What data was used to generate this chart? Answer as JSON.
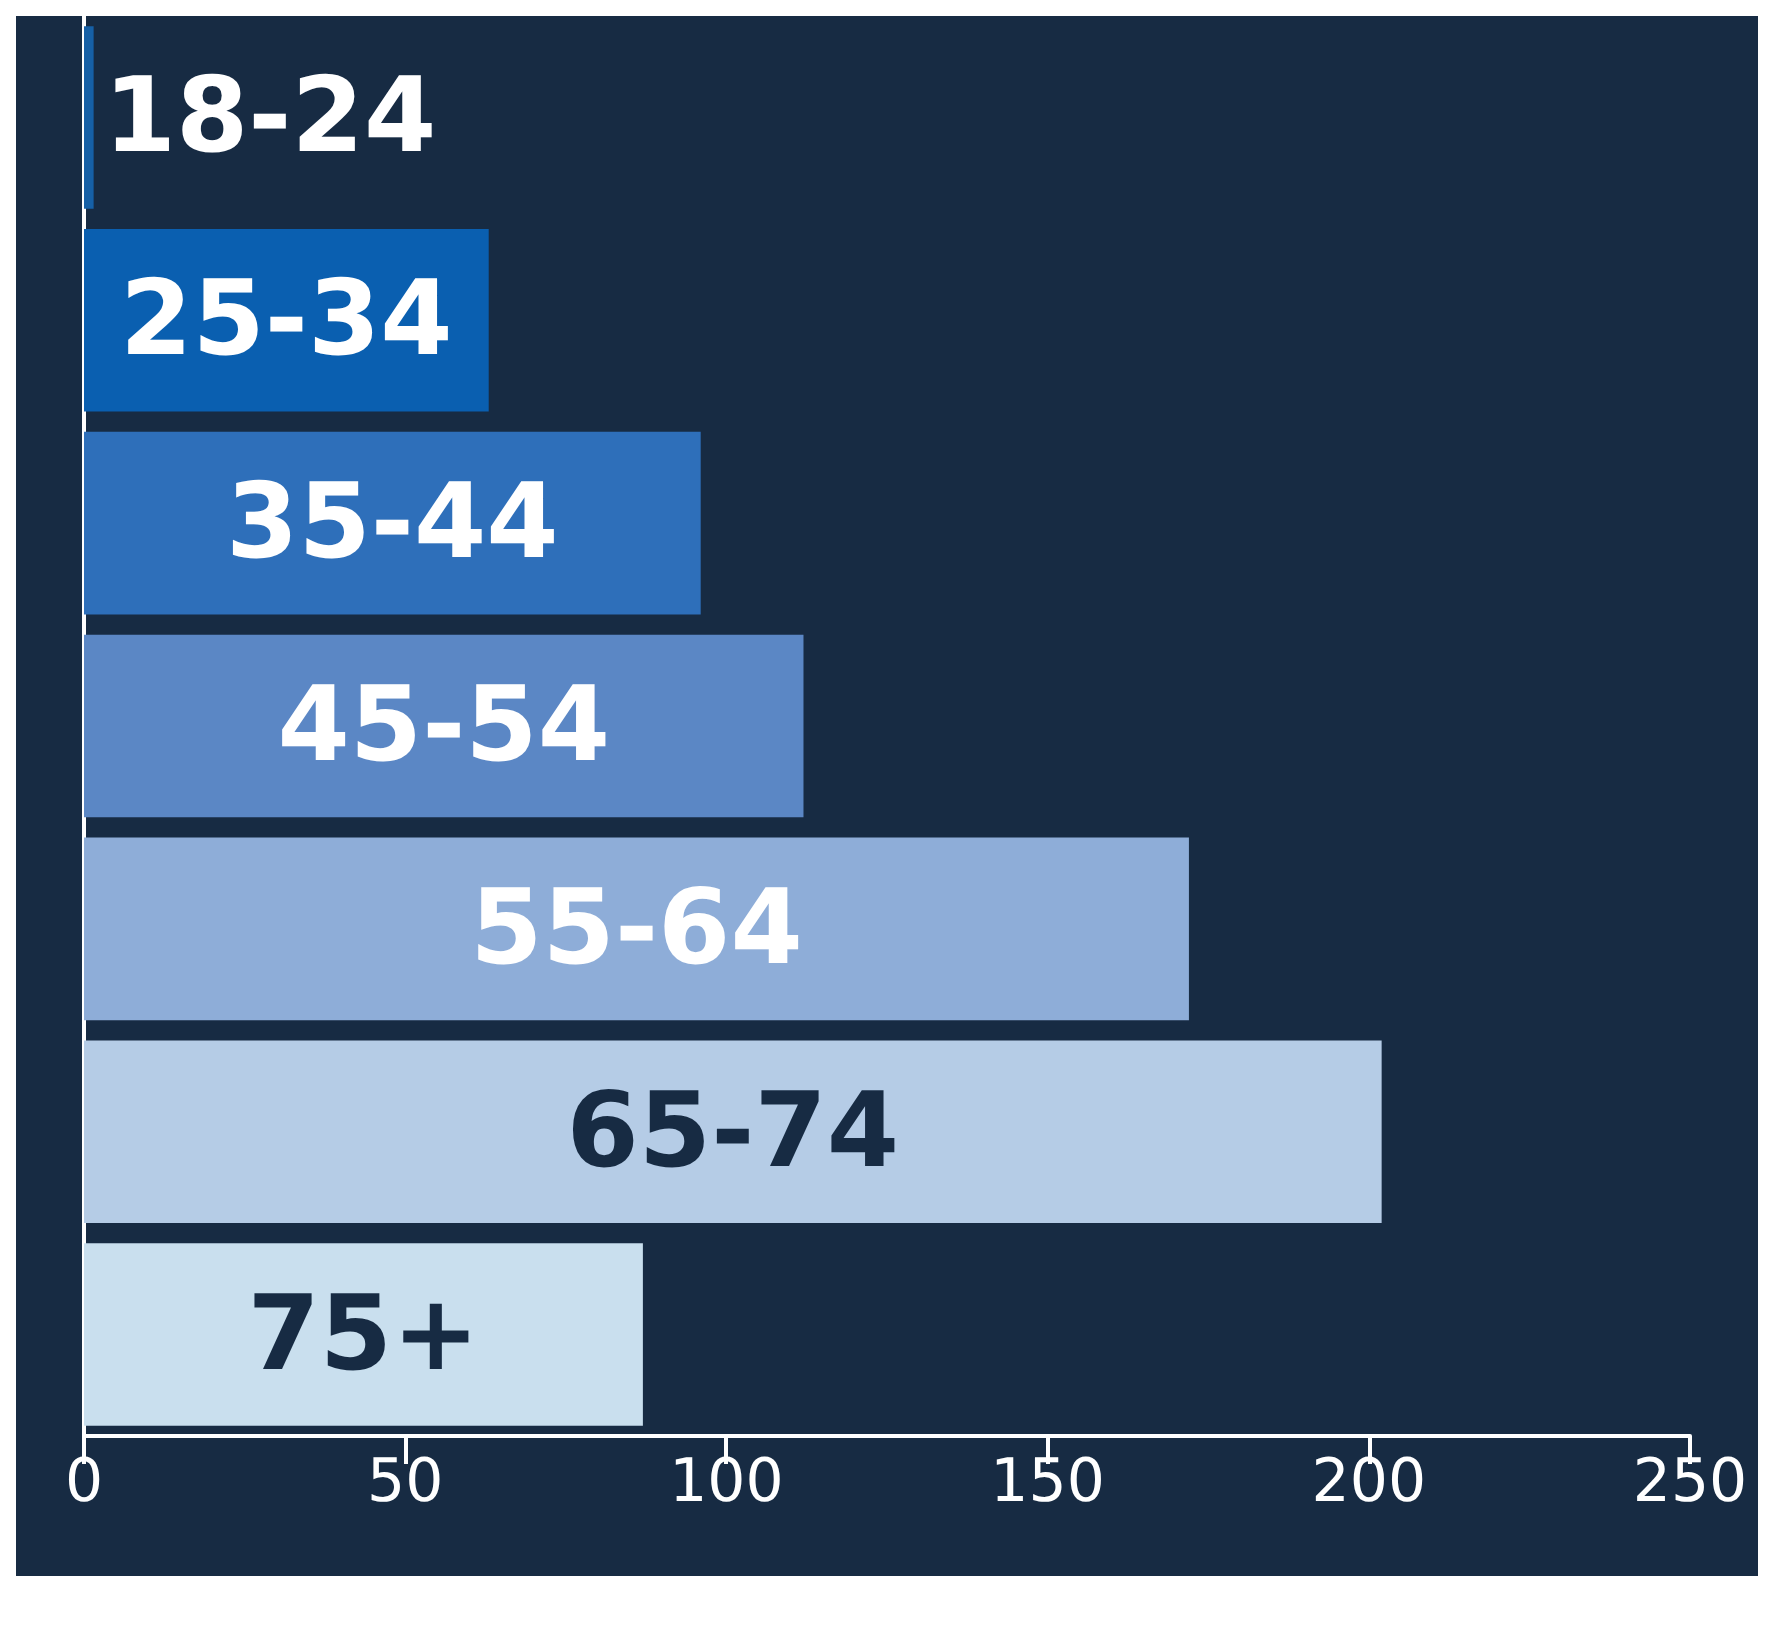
{
  "chart_data": {
    "type": "bar",
    "orientation": "horizontal",
    "categories": [
      "18-24",
      "25-34",
      "35-44",
      "45-54",
      "55-64",
      "65-74",
      "75+"
    ],
    "values": [
      1.5,
      63,
      96,
      112,
      172,
      202,
      87
    ],
    "colors": [
      "#1660a6",
      "#0a5fb0",
      "#2e6fba",
      "#5b87c5",
      "#8eadd8",
      "#b5cce6",
      "#c9dfee"
    ],
    "xlim": [
      0,
      250
    ],
    "xticks": [
      0,
      50,
      100,
      150,
      200,
      250
    ],
    "tick_labels": "x",
    "grid": false
  }
}
